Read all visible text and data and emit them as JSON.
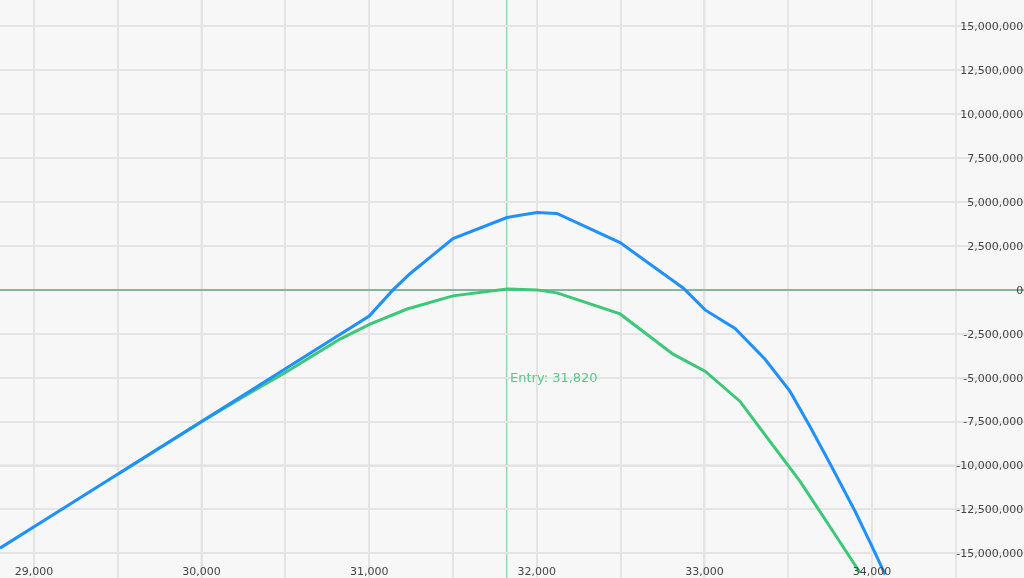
{
  "chart_data": {
    "type": "line",
    "series": [
      {
        "color": "#3cc878",
        "x": [
          29500,
          30000,
          30300,
          30500,
          30826,
          31005,
          31226,
          31500,
          31822,
          32000,
          32120,
          32497,
          32813,
          33004,
          33213,
          33392,
          33571,
          33750,
          33929
        ],
        "values": [
          -10500000,
          -7500000,
          -5800000,
          -4700000,
          -2800000,
          -1950000,
          -1090000,
          -340000,
          50000,
          0,
          -170000,
          -1370000,
          -3660000,
          -4630000,
          -6350000,
          -8640000,
          -10900000,
          -13500000,
          -16100000
        ]
      },
      {
        "color": "#1e90ff",
        "x": [
          28797,
          31000,
          31142,
          31243,
          31500,
          31822,
          32000,
          32120,
          32497,
          32873,
          33004,
          33183,
          33362,
          33511,
          33630,
          33750,
          33899,
          34000,
          34078
        ],
        "values": [
          -14700000,
          -1490000,
          0,
          920000,
          2920000,
          4120000,
          4400000,
          4350000,
          2690000,
          110000,
          -1140000,
          -2200000,
          -3950000,
          -5780000,
          -7780000,
          -9900000,
          -12600000,
          -14600000,
          -16200000
        ]
      }
    ],
    "xlim": [
      28797,
      34907
    ],
    "xticks": [
      {
        "value": 29000,
        "label": "29,000"
      },
      {
        "value": 29500,
        "label": null
      },
      {
        "value": 30000,
        "label": "30,000"
      },
      {
        "value": 30500,
        "label": null
      },
      {
        "value": 31000,
        "label": "31,000"
      },
      {
        "value": 31500,
        "label": null
      },
      {
        "value": 32000,
        "label": "32,000"
      },
      {
        "value": 32500,
        "label": null
      },
      {
        "value": 33000,
        "label": "33,000"
      },
      {
        "value": 33500,
        "label": null
      },
      {
        "value": 34000,
        "label": "34,000"
      },
      {
        "value": 34500,
        "label": null
      }
    ],
    "ylim": [
      -16400000,
      16500000
    ],
    "yticks": [
      {
        "value": -15000000,
        "label": "-15,000,000"
      },
      {
        "value": -12500000,
        "label": "-12,500,000"
      },
      {
        "value": -10000000,
        "label": "-10,000,000"
      },
      {
        "value": -7500000,
        "label": "-7,500,000"
      },
      {
        "value": -5000000,
        "label": "-5,000,000"
      },
      {
        "value": -2500000,
        "label": "-2,500,000"
      },
      {
        "value": 0,
        "label": "0"
      },
      {
        "value": 2500000,
        "label": "2,500,000"
      },
      {
        "value": 5000000,
        "label": "5,000,000"
      },
      {
        "value": 7500000,
        "label": "7,500,000"
      },
      {
        "value": 10000000,
        "label": "10,000,000"
      },
      {
        "value": 12500000,
        "label": "12,500,000"
      },
      {
        "value": 15000000,
        "label": "15,000,000"
      }
    ],
    "ref_lines": [
      {
        "axis": "y",
        "value": 0,
        "color": "#7fb89a"
      },
      {
        "axis": "x",
        "value": 31820,
        "label": "Entry: 31,820",
        "color": "#8fdcaa"
      }
    ],
    "grid": true,
    "marker": "none",
    "line_style": "solid"
  }
}
